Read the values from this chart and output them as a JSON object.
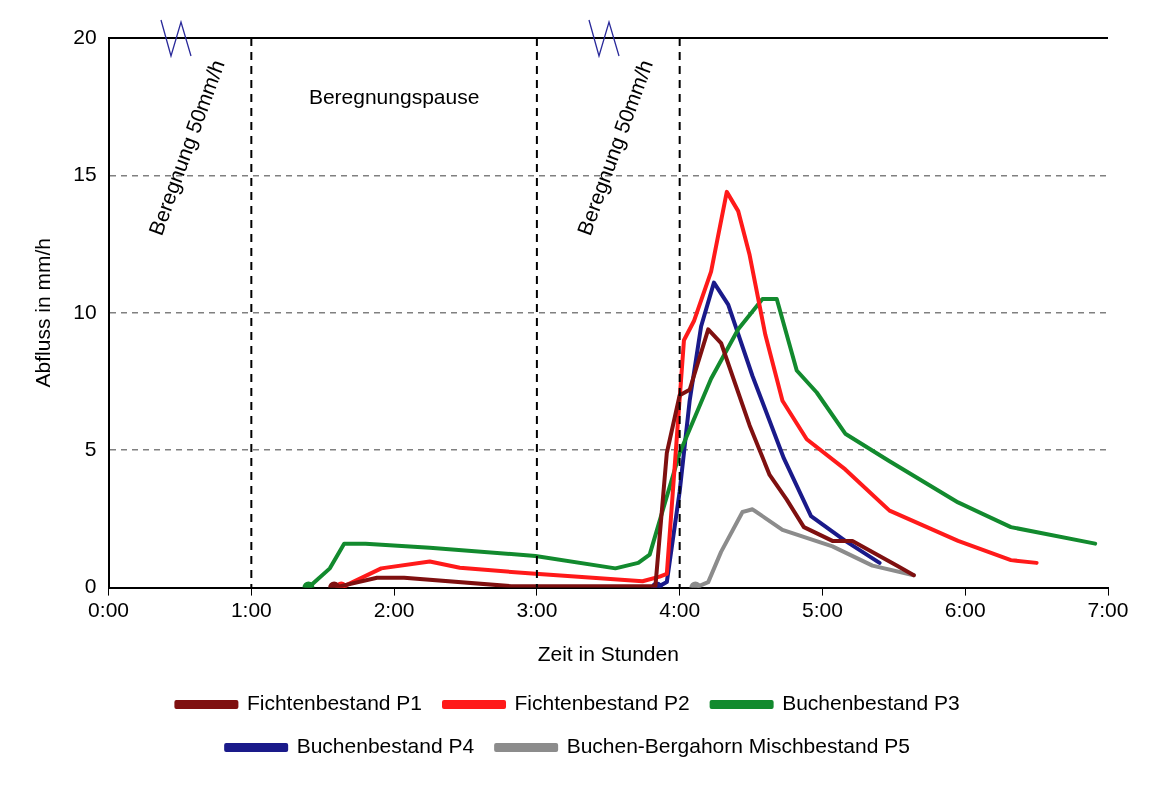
{
  "chart_data": {
    "type": "line",
    "xlabel": "Zeit in Stunden",
    "ylabel": "Abfluss in mm/h",
    "xlim": [
      0,
      7
    ],
    "ylim": [
      0,
      20
    ],
    "xticks": [
      {
        "value": 0,
        "label": "0:00"
      },
      {
        "value": 1,
        "label": "1:00"
      },
      {
        "value": 2,
        "label": "2:00"
      },
      {
        "value": 3,
        "label": "3:00"
      },
      {
        "value": 4,
        "label": "4:00"
      },
      {
        "value": 5,
        "label": "5:00"
      },
      {
        "value": 6,
        "label": "6:00"
      },
      {
        "value": 7,
        "label": "7:00"
      }
    ],
    "yticks": [
      0,
      5,
      10,
      15,
      20
    ],
    "grid": "y",
    "legend": "bottom",
    "line_style": "solid",
    "ref_lines": [
      {
        "axis": "x",
        "value": 1,
        "line_style": "dashed",
        "color": "#000000"
      },
      {
        "axis": "x",
        "value": 3,
        "line_style": "dashed",
        "color": "#000000"
      },
      {
        "axis": "x",
        "value": 4,
        "line_style": "dashed",
        "color": "#000000"
      }
    ],
    "annotations": [
      "Beregnung 50mm/h",
      "Beregnungspause",
      "Beregnung 50mm/h"
    ],
    "series": [
      {
        "name": "Fichtenbestand P1",
        "color": "#7f1010",
        "x": [
          1.58,
          1.88,
          2.07,
          2.82,
          3.83,
          3.91,
          4.0,
          4.07,
          4.2,
          4.29,
          4.49,
          4.63,
          4.75,
          4.87,
          5.07,
          5.21,
          5.52,
          5.64
        ],
        "values": [
          0,
          0.36,
          0.36,
          0.05,
          0.05,
          4.9,
          7.0,
          7.2,
          9.4,
          8.9,
          5.9,
          4.1,
          3.2,
          2.2,
          1.7,
          1.7,
          0.8,
          0.45
        ]
      },
      {
        "name": "Fichtenbestand P2",
        "color": "#ff1a1a",
        "x": [
          1.63,
          1.91,
          2.25,
          2.46,
          2.99,
          3.74,
          3.86,
          3.91,
          4.03,
          4.1,
          4.22,
          4.33,
          4.41,
          4.49,
          4.6,
          4.72,
          4.89,
          5.16,
          5.47,
          5.95,
          6.32,
          6.5
        ],
        "values": [
          0,
          0.7,
          0.95,
          0.72,
          0.5,
          0.23,
          0.4,
          0.5,
          9.0,
          9.7,
          11.5,
          14.4,
          13.7,
          12.1,
          9.2,
          6.8,
          5.4,
          4.3,
          2.8,
          1.7,
          1.0,
          0.9
        ]
      },
      {
        "name": "Buchenbestand P3",
        "color": "#128a2e",
        "x": [
          1.4,
          1.55,
          1.65,
          1.8,
          2.25,
          2.99,
          3.55,
          3.71,
          3.79,
          4.0,
          4.22,
          4.41,
          4.58,
          4.68,
          4.82,
          4.96,
          5.16,
          5.47,
          5.95,
          6.32,
          6.91
        ],
        "values": [
          0,
          0.7,
          1.6,
          1.6,
          1.45,
          1.15,
          0.7,
          0.9,
          1.2,
          4.9,
          7.6,
          9.4,
          10.5,
          10.5,
          7.9,
          7.1,
          5.6,
          4.6,
          3.1,
          2.2,
          1.6
        ]
      },
      {
        "name": "Buchenbestand P4",
        "color": "#1a1a8a",
        "x": [
          3.84,
          3.91,
          4.0,
          4.07,
          4.15,
          4.24,
          4.34,
          4.51,
          4.73,
          4.92,
          5.16,
          5.4
        ],
        "values": [
          0,
          0.2,
          3.5,
          6.8,
          9.5,
          11.1,
          10.3,
          7.7,
          4.7,
          2.6,
          1.7,
          0.9
        ]
      },
      {
        "name": "Buchen-Bergahorn Mischbestand P5",
        "color": "#8c8c8c",
        "x": [
          4.11,
          4.2,
          4.29,
          4.44,
          4.51,
          4.72,
          5.07,
          5.35,
          5.64
        ],
        "values": [
          0,
          0.2,
          1.3,
          2.75,
          2.85,
          2.1,
          1.5,
          0.8,
          0.45
        ]
      }
    ]
  }
}
